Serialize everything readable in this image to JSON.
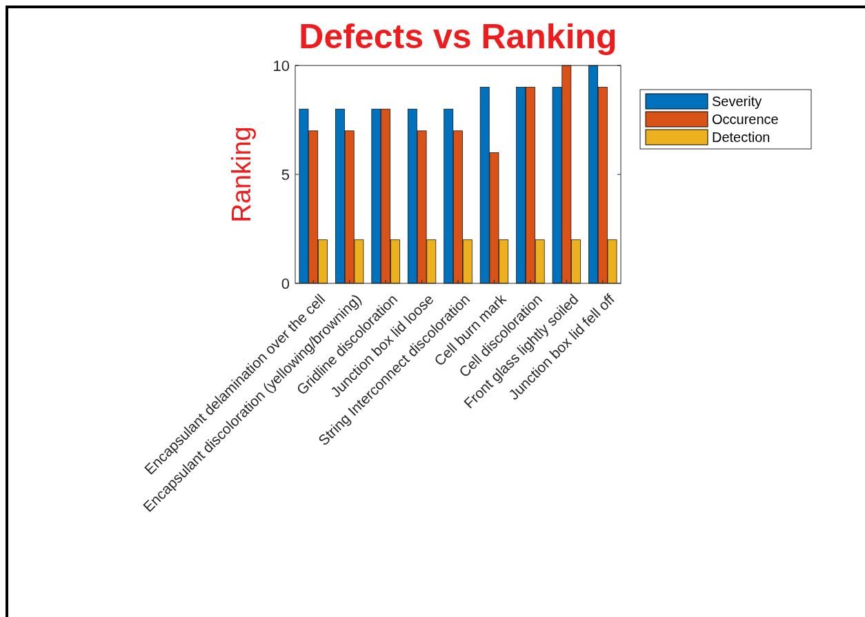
{
  "chart_data": {
    "type": "bar",
    "title": "Defects vs Ranking",
    "ylabel": "Ranking",
    "categories": [
      "Encapsulant delamination over the cell",
      "Encapsulant discoloration (yellowing/browning)",
      "Gridline discoloration",
      "Junction box lid loose",
      "String Interconnect discoloration",
      "Cell burn mark",
      "Cell discoloration",
      "Front glass lightly soiled",
      "Junction box lid fell off"
    ],
    "series": [
      {
        "name": "Severity",
        "color": "#0072bd",
        "values": [
          8,
          8,
          8,
          8,
          8,
          9,
          9,
          9,
          10
        ]
      },
      {
        "name": "Occurence",
        "color": "#d95319",
        "values": [
          7,
          7,
          8,
          7,
          7,
          6,
          9,
          10,
          9
        ]
      },
      {
        "name": "Detection",
        "color": "#edb120",
        "values": [
          2,
          2,
          2,
          2,
          2,
          2,
          2,
          2,
          2
        ]
      }
    ],
    "ylim": [
      0,
      10
    ],
    "yticks": [
      0,
      5,
      10
    ],
    "grid": false,
    "legend": "top right"
  }
}
